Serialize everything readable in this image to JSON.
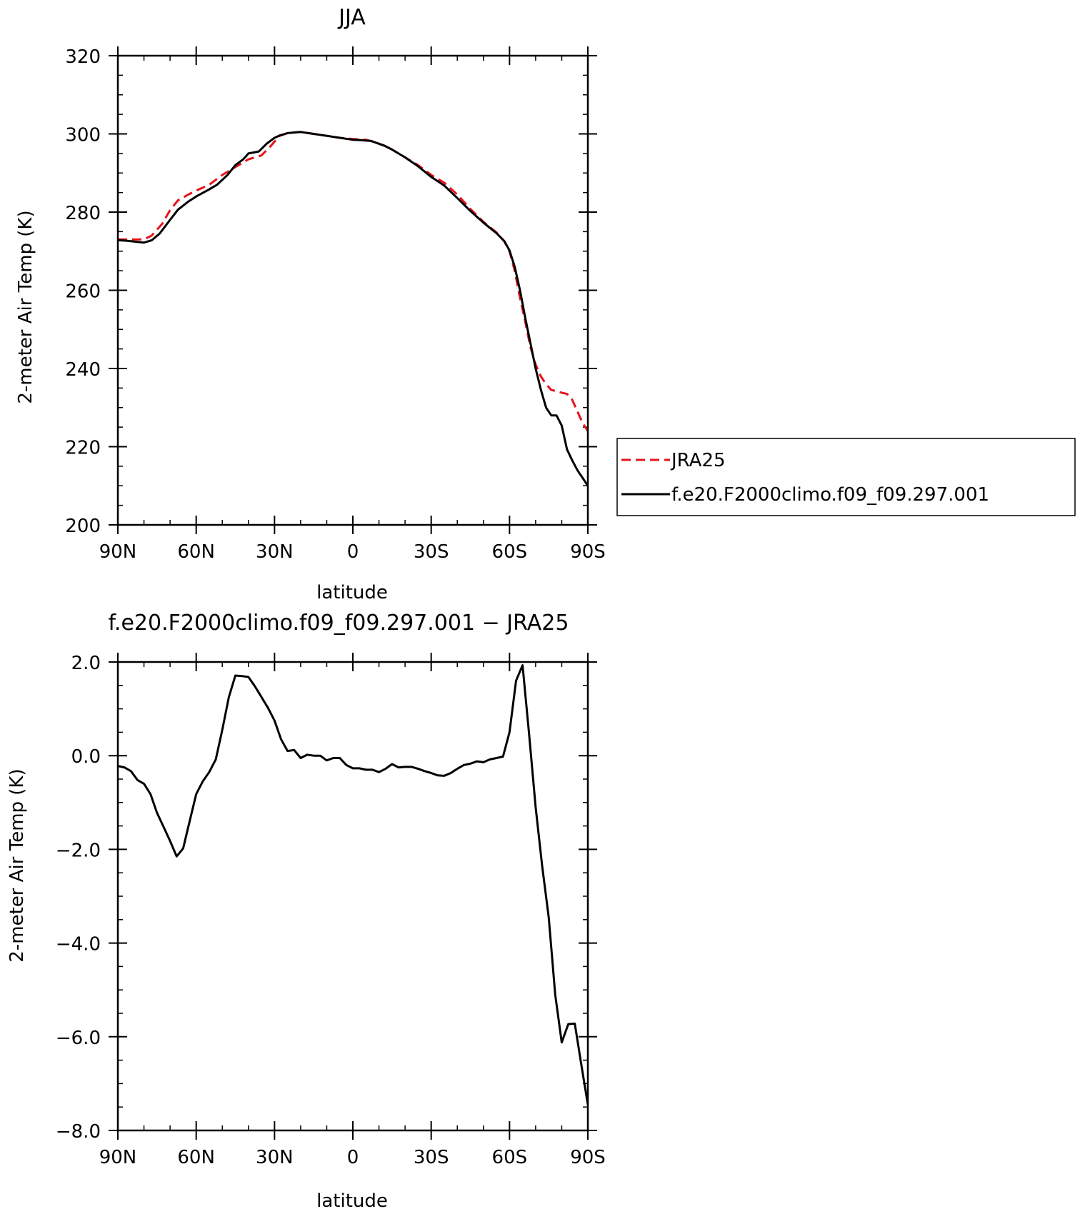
{
  "chart_data": [
    {
      "type": "line",
      "title": "JJA",
      "xlabel": "latitude",
      "ylabel": "2-meter Air Temp (K)",
      "xlim": [
        90,
        -90
      ],
      "ylim": [
        200,
        320
      ],
      "xticks": [
        {
          "value": 90,
          "label": "90N"
        },
        {
          "value": 60,
          "label": "60N"
        },
        {
          "value": 30,
          "label": "30N"
        },
        {
          "value": 0,
          "label": "0"
        },
        {
          "value": -30,
          "label": "30S"
        },
        {
          "value": -60,
          "label": "60S"
        },
        {
          "value": -90,
          "label": "90S"
        }
      ],
      "yticks": [
        {
          "value": 200,
          "label": "200"
        },
        {
          "value": 220,
          "label": "220"
        },
        {
          "value": 240,
          "label": "240"
        },
        {
          "value": 260,
          "label": "260"
        },
        {
          "value": 280,
          "label": "280"
        },
        {
          "value": 300,
          "label": "300"
        },
        {
          "value": 320,
          "label": "320"
        }
      ],
      "x_minor_step": 10,
      "y_minor_step": 5,
      "grid": false,
      "legend": {
        "placement": "right"
      },
      "series": [
        {
          "name": "JRA25",
          "color": "#e8141b",
          "dash": "dashed",
          "x": [
            90,
            85,
            80,
            77,
            73,
            70,
            67,
            63,
            60,
            55,
            50,
            45,
            40,
            35,
            32,
            28,
            25,
            20,
            15,
            10,
            5,
            0,
            -5,
            -8,
            -12,
            -15,
            -20,
            -25,
            -30,
            -35,
            -40,
            -45,
            -50,
            -55,
            -58,
            -60,
            -62,
            -64,
            -66,
            -68,
            -70,
            -72,
            -74,
            -76,
            -78,
            -80,
            -82,
            -84,
            -86,
            -88,
            -90
          ],
          "y": [
            273,
            273,
            273,
            274,
            277,
            280.5,
            283,
            284.5,
            285.5,
            287,
            289.5,
            291.5,
            293.5,
            294.5,
            296.5,
            299.5,
            300.2,
            300.5,
            300,
            299.5,
            299,
            298.7,
            298.5,
            298,
            297,
            296,
            294,
            292,
            289.5,
            287.5,
            284.5,
            280.8,
            277.5,
            274.8,
            272.5,
            270,
            265,
            258,
            252,
            245.5,
            241,
            238,
            236,
            234.5,
            234.2,
            233.8,
            233.5,
            232,
            229,
            226,
            224
          ]
        },
        {
          "name": "f.e20.F2000climo.f09_f09.297.001",
          "color": "#000000",
          "dash": "solid",
          "x": [
            90,
            87,
            84,
            80,
            77,
            74,
            70,
            67,
            63,
            60,
            55,
            52,
            48,
            45,
            42,
            40,
            36,
            33,
            30,
            28,
            25,
            20,
            15,
            10,
            5,
            0,
            -3,
            -7,
            -12,
            -15,
            -20,
            -25,
            -30,
            -35,
            -40,
            -45,
            -50,
            -55,
            -58,
            -60,
            -62,
            -64,
            -66,
            -68,
            -70,
            -72,
            -74,
            -76,
            -78,
            -80,
            -82,
            -84,
            -86,
            -88,
            -90
          ],
          "y": [
            272.8,
            272.7,
            272.5,
            272.2,
            272.8,
            274.5,
            278,
            280.6,
            282.7,
            284,
            285.8,
            287,
            289.5,
            292,
            293.5,
            295,
            295.5,
            297.5,
            299,
            299.6,
            300.2,
            300.5,
            300,
            299.5,
            299,
            298.5,
            298.4,
            298.2,
            297,
            296,
            294,
            291.7,
            289,
            286.8,
            283.6,
            280.3,
            277.3,
            274.6,
            272.6,
            270.2,
            266,
            260,
            253,
            246.5,
            240,
            234.6,
            230,
            228,
            228,
            225.4,
            219.3,
            216.5,
            214,
            212,
            210
          ]
        }
      ]
    },
    {
      "type": "line",
      "title": "f.e20.F2000climo.f09_f09.297.001 − JRA25",
      "xlabel": "latitude",
      "ylabel": "2-meter Air Temp (K)",
      "xlim": [
        90,
        -90
      ],
      "ylim": [
        -8,
        2
      ],
      "xticks": [
        {
          "value": 90,
          "label": "90N"
        },
        {
          "value": 60,
          "label": "60N"
        },
        {
          "value": 30,
          "label": "30N"
        },
        {
          "value": 0,
          "label": "0"
        },
        {
          "value": -30,
          "label": "30S"
        },
        {
          "value": -60,
          "label": "60S"
        },
        {
          "value": -90,
          "label": "90S"
        }
      ],
      "yticks": [
        {
          "value": -8,
          "label": "−8.0"
        },
        {
          "value": -6,
          "label": "−6.0"
        },
        {
          "value": -4,
          "label": "−4.0"
        },
        {
          "value": -2,
          "label": "−2.0"
        },
        {
          "value": 0,
          "label": "0.0"
        },
        {
          "value": 2,
          "label": "2.0"
        }
      ],
      "x_minor_step": 10,
      "y_minor_step": 0.5,
      "grid": false,
      "series": [
        {
          "name": "",
          "color": "#000000",
          "dash": "solid",
          "x": [
            90,
            87.5,
            85,
            82.5,
            80,
            77.5,
            75,
            72.5,
            70,
            67.5,
            65,
            62.5,
            60,
            57.5,
            55,
            52.5,
            50,
            47.5,
            45,
            42.5,
            40,
            37.5,
            35,
            32.5,
            30,
            27.5,
            25,
            22.5,
            20,
            17.5,
            15,
            12.5,
            10,
            7.5,
            5,
            2.5,
            0,
            -2.5,
            -5,
            -7.5,
            -10,
            -12.5,
            -15,
            -17.5,
            -20,
            -22.5,
            -25,
            -27.5,
            -30,
            -32.5,
            -35,
            -37.5,
            -40,
            -42.5,
            -45,
            -47.5,
            -50,
            -52.5,
            -55,
            -57.5,
            -60,
            -62.5,
            -65,
            -67.5,
            -70,
            -72.5,
            -75,
            -77.5,
            -80,
            -82.5,
            -85,
            -87.5,
            -90
          ],
          "y": [
            -0.22,
            -0.25,
            -0.33,
            -0.52,
            -0.6,
            -0.82,
            -1.22,
            -1.52,
            -1.82,
            -2.15,
            -1.98,
            -1.4,
            -0.82,
            -0.55,
            -0.35,
            -0.08,
            0.55,
            1.25,
            1.71,
            1.7,
            1.68,
            1.48,
            1.25,
            1.02,
            0.75,
            0.35,
            0.1,
            0.12,
            -0.05,
            0.02,
            0.0,
            0.0,
            -0.1,
            -0.05,
            -0.05,
            -0.2,
            -0.27,
            -0.27,
            -0.3,
            -0.3,
            -0.35,
            -0.28,
            -0.18,
            -0.25,
            -0.24,
            -0.24,
            -0.28,
            -0.33,
            -0.37,
            -0.42,
            -0.43,
            -0.37,
            -0.28,
            -0.2,
            -0.17,
            -0.12,
            -0.14,
            -0.08,
            -0.05,
            -0.02,
            0.5,
            1.6,
            1.93,
            0.45,
            -1.1,
            -2.35,
            -3.45,
            -5.1,
            -6.12,
            -5.73,
            -5.72,
            -6.6,
            -7.45
          ]
        }
      ]
    }
  ]
}
